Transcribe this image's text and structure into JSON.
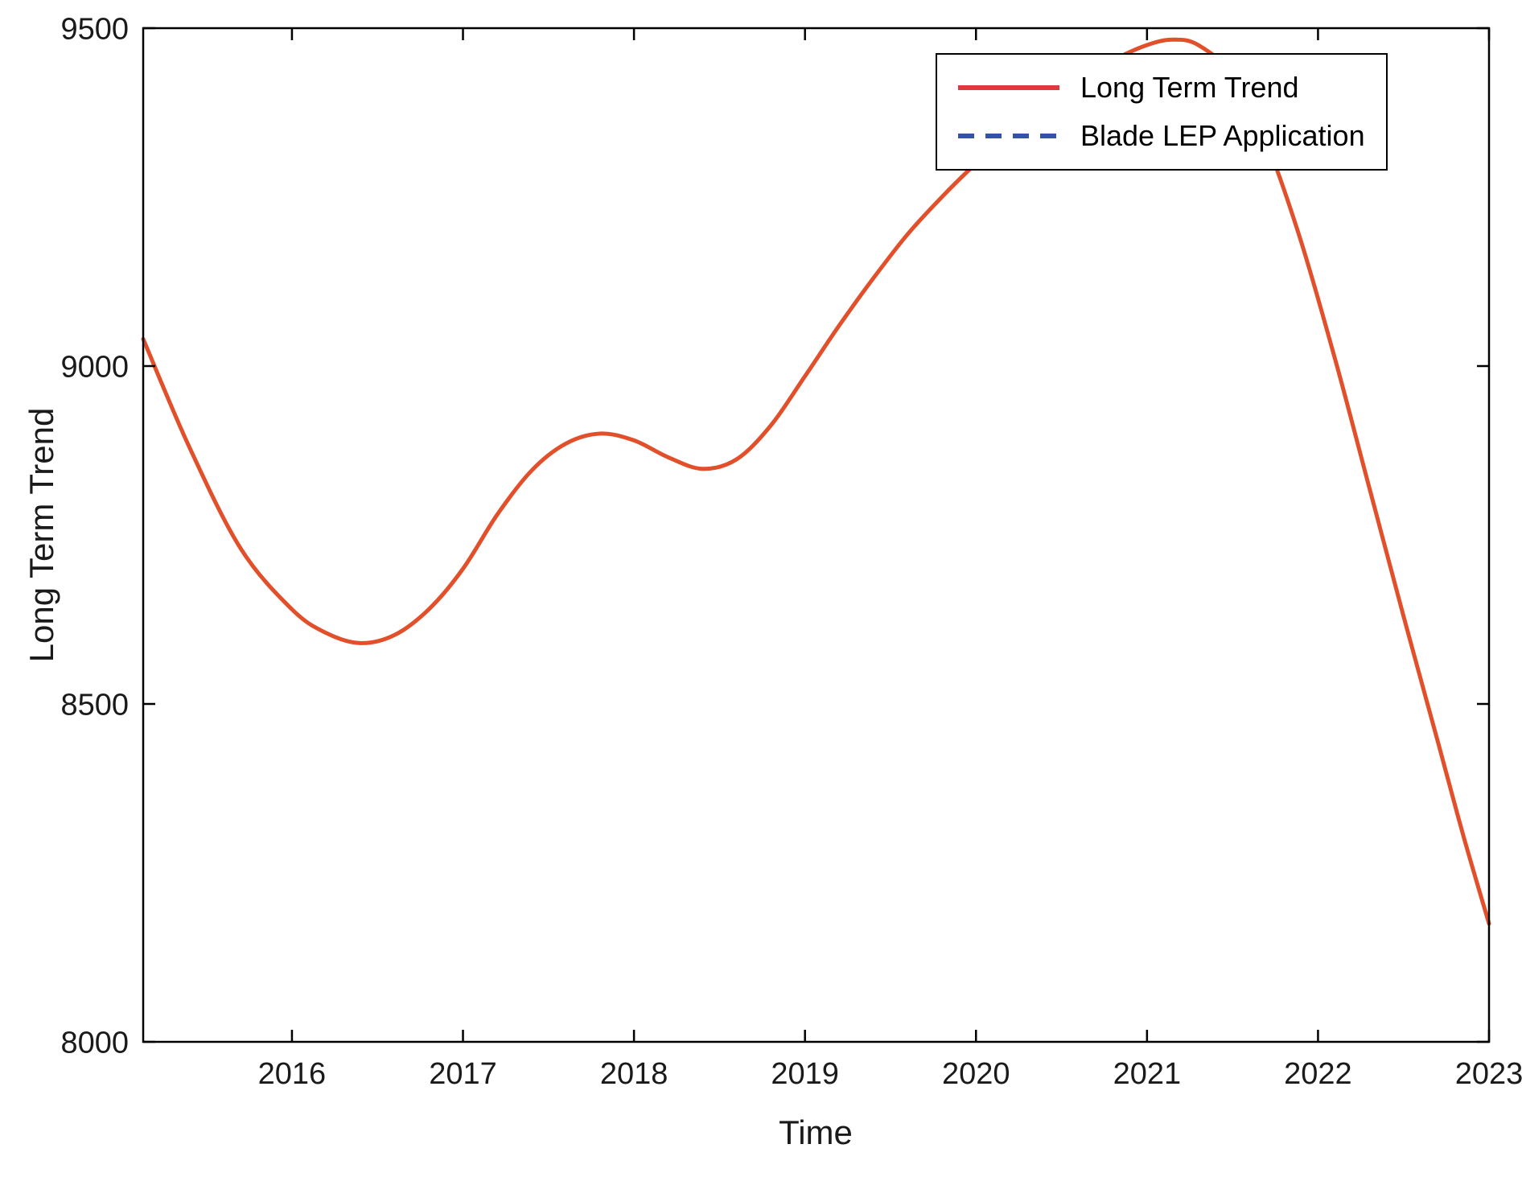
{
  "figure": {
    "background": "#ffffff",
    "axis_box_color": "#000000",
    "tick_label_color": "#1a1a1a"
  },
  "chart_data": {
    "type": "line",
    "title": "",
    "xlabel": "Time",
    "ylabel": "Long Term Trend",
    "xlim": [
      2015.13,
      2023
    ],
    "ylim": [
      8000,
      9500
    ],
    "xticks": [
      2016,
      2017,
      2018,
      2019,
      2020,
      2021,
      2022,
      2023
    ],
    "yticks": [
      8000,
      8500,
      9000,
      9500
    ],
    "grid": false,
    "legend": {
      "position": "top-right",
      "entries": [
        {
          "label": "Long Term Trend",
          "color": "#e0383d",
          "style": "solid"
        },
        {
          "label": "Blade LEP Application",
          "color": "#3353a8",
          "style": "dashed"
        }
      ]
    },
    "series": [
      {
        "name": "Long Term Trend",
        "color": "#e1502a",
        "style": "solid",
        "line_width": 5,
        "x": [
          2015.13,
          2015.4,
          2015.7,
          2016.0,
          2016.2,
          2016.4,
          2016.6,
          2016.8,
          2017.0,
          2017.2,
          2017.4,
          2017.6,
          2017.8,
          2018.0,
          2018.2,
          2018.4,
          2018.6,
          2018.8,
          2019.0,
          2019.2,
          2019.4,
          2019.6,
          2019.8,
          2020.0,
          2020.2,
          2020.4,
          2020.6,
          2020.8,
          2021.0,
          2021.15,
          2021.3,
          2021.5,
          2021.7,
          2021.9,
          2022.1,
          2022.3,
          2022.5,
          2022.7,
          2022.85,
          2023.0
        ],
        "y": [
          9040,
          8880,
          8730,
          8640,
          8605,
          8590,
          8602,
          8640,
          8700,
          8780,
          8845,
          8885,
          8900,
          8890,
          8865,
          8848,
          8862,
          8912,
          8985,
          9060,
          9130,
          9195,
          9250,
          9300,
          9345,
          9385,
          9420,
          9452,
          9475,
          9483,
          9475,
          9430,
          9330,
          9185,
          9010,
          8820,
          8630,
          8445,
          8305,
          8175
        ]
      },
      {
        "name": "Blade LEP Application",
        "color": "#3353a8",
        "style": "dashed",
        "line_width": 5,
        "x": [],
        "y": []
      }
    ]
  }
}
